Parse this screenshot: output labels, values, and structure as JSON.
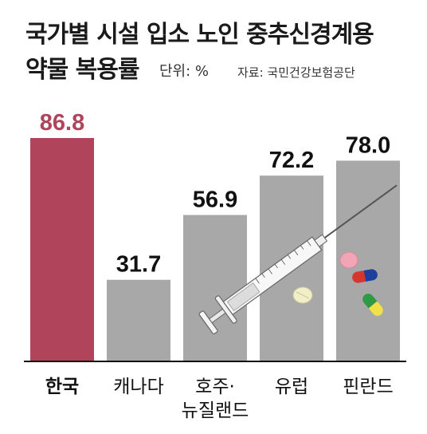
{
  "header": {
    "title_line1": "국가별 시설 입소 노인 중추신경계용",
    "title_line2": "약물 복용률",
    "unit": "단위: %",
    "source": "자료: 국민건강보험공단"
  },
  "colors": {
    "highlight": "#b0445b",
    "bar": "#a8a8a8",
    "axis": "#111111",
    "highlight_text": "#b0445b",
    "text": "#111111"
  },
  "chart_data": {
    "type": "bar",
    "title": "국가별 시설 입소 노인 중추신경계용 약물 복용률",
    "unit": "%",
    "categories": [
      "한국",
      "캐나다",
      "호주·뉴질랜드",
      "유럽",
      "핀란드"
    ],
    "category_lines": [
      [
        "한국"
      ],
      [
        "캐나다"
      ],
      [
        "호주·",
        "뉴질랜드"
      ],
      [
        "유럽"
      ],
      [
        "핀란드"
      ]
    ],
    "values": [
      86.8,
      31.7,
      56.9,
      72.2,
      78.0
    ],
    "value_labels": [
      "86.8",
      "31.7",
      "56.9",
      "72.2",
      "78.0"
    ],
    "highlight_index": 0,
    "ylim": [
      0,
      100
    ],
    "grid": false,
    "legend": "none"
  },
  "illustration": {
    "icons": [
      "syringe-icon",
      "pill-icon"
    ]
  }
}
